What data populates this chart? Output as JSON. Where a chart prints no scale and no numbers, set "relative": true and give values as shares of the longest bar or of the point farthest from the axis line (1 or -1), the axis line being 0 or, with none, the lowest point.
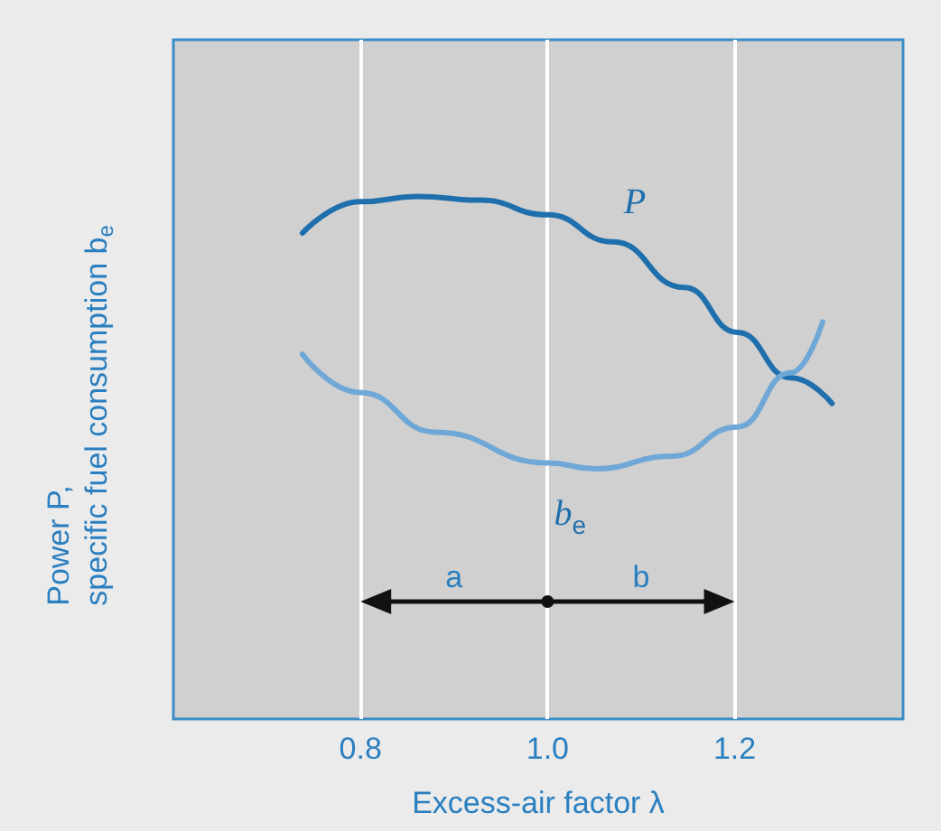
{
  "chart_data": {
    "type": "line",
    "relative": true,
    "xlabel": "Excess-air factor λ",
    "ylabel": "Power P,\nspecific fuel consumption b$_{e}$",
    "xlim": [
      0.6,
      1.38
    ],
    "xticks": [
      0.8,
      {
        "value": 1,
        "label": "1.0"
      },
      1.2
    ],
    "grid": "x",
    "marker": "none",
    "series": [
      {
        "name": "P",
        "color": "#1f6fad",
        "x": [
          0.738,
          0.8,
          0.861,
          0.928,
          1.0,
          1.07,
          1.146,
          1.203,
          1.26,
          1.304
        ],
        "values": [
          0.93,
          0.99,
          1.0,
          0.993,
          0.965,
          0.913,
          0.826,
          0.74,
          0.653,
          0.604
        ]
      },
      {
        "name": "b$_{e}$",
        "color": "#6fa8d6",
        "x": [
          0.738,
          0.799,
          0.88,
          1.0,
          1.051,
          1.133,
          1.203,
          1.26,
          1.294
        ],
        "values": [
          0.698,
          0.625,
          0.549,
          0.49,
          0.479,
          0.503,
          0.559,
          0.663,
          0.76
        ]
      }
    ],
    "annotations": [
      "a",
      "b"
    ]
  }
}
